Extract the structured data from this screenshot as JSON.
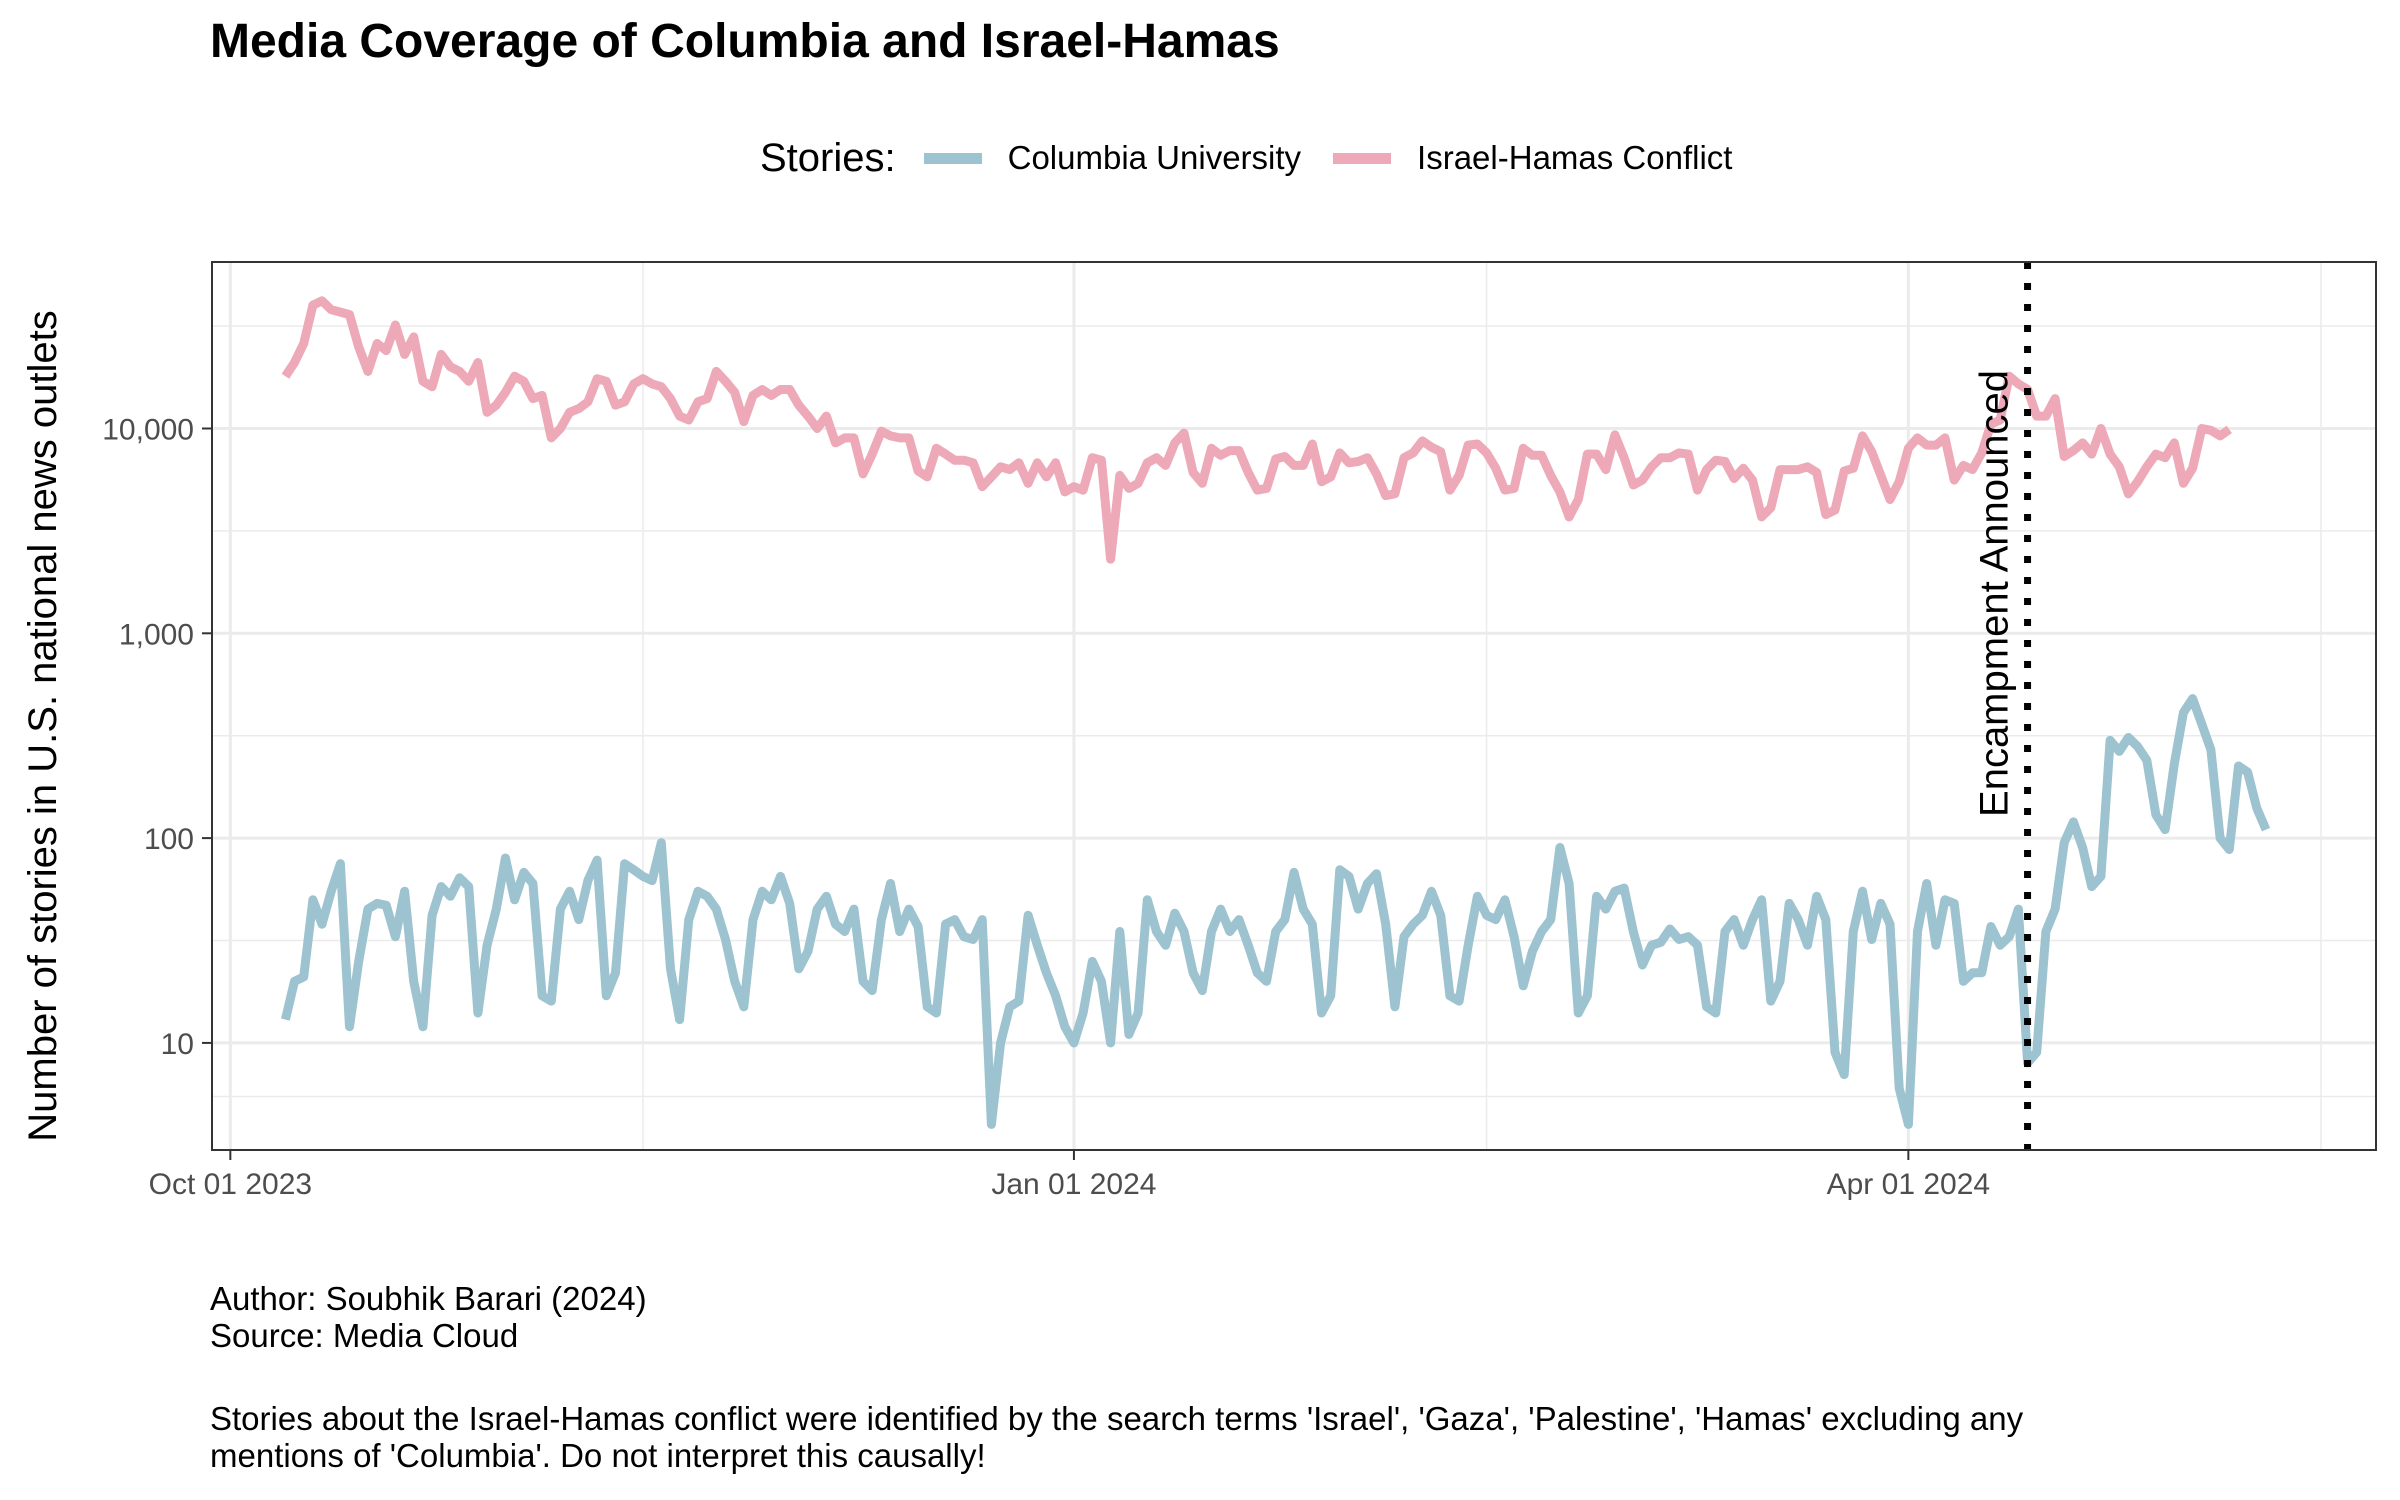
{
  "chart_data": {
    "type": "line",
    "title": "Media Coverage of Columbia and Israel-Hamas",
    "ylabel": "Number of stories in U.S. national news outlets",
    "xlabel": "",
    "x_range": [
      "2023-09-29",
      "2024-05-22"
    ],
    "y_scale": "log10",
    "ylim": [
      3,
      65000
    ],
    "x_ticks": [
      {
        "date": "2023-10-01",
        "label": "Oct 01 2023"
      },
      {
        "date": "2024-01-01",
        "label": "Jan 01 2024"
      },
      {
        "date": "2024-04-01",
        "label": "Apr 01 2024"
      }
    ],
    "y_ticks": [
      {
        "value": 10,
        "label": "10"
      },
      {
        "value": 100,
        "label": "100"
      },
      {
        "value": 1000,
        "label": "1,000"
      },
      {
        "value": 10000,
        "label": "10,000"
      }
    ],
    "legend": {
      "title": "Stories:",
      "position": "top"
    },
    "grid": true,
    "start_date": "2023-10-07",
    "series": [
      {
        "name": "Columbia University",
        "color": "#9CC3CF",
        "values": [
          13,
          20,
          21,
          50,
          38,
          55,
          75,
          12,
          25,
          45,
          48,
          47,
          33,
          55,
          20,
          12,
          42,
          58,
          52,
          64,
          58,
          14,
          30,
          45,
          80,
          50,
          68,
          60,
          17,
          16,
          45,
          55,
          40,
          62,
          78,
          17,
          22,
          75,
          70,
          65,
          62,
          95,
          23,
          13,
          40,
          55,
          52,
          45,
          32,
          20,
          15,
          40,
          55,
          50,
          65,
          48,
          23,
          28,
          45,
          52,
          38,
          35,
          45,
          20,
          18,
          40,
          60,
          35,
          45,
          37,
          15,
          14,
          38,
          40,
          33,
          32,
          40,
          4,
          10,
          15,
          16,
          42,
          30,
          22,
          17,
          12,
          10,
          14,
          25,
          20,
          10,
          35,
          11,
          14,
          50,
          35,
          30,
          43,
          35,
          22,
          18,
          35,
          45,
          35,
          40,
          30,
          22,
          20,
          35,
          40,
          68,
          45,
          38,
          14,
          17,
          70,
          65,
          45,
          60,
          67,
          38,
          15,
          33,
          38,
          42,
          55,
          42,
          17,
          16,
          30,
          52,
          42,
          40,
          50,
          33,
          19,
          28,
          35,
          40,
          90,
          60,
          14,
          17,
          52,
          45,
          55,
          57,
          35,
          24,
          30,
          31,
          36,
          32,
          33,
          30,
          15,
          14,
          35,
          40,
          30,
          40,
          50,
          16,
          20,
          48,
          40,
          30,
          52,
          40,
          9,
          7,
          35,
          55,
          32,
          48,
          38,
          6,
          4,
          35,
          60,
          30,
          50,
          48,
          20,
          22,
          22,
          37,
          30,
          33,
          45,
          8,
          9,
          35,
          45,
          95,
          120,
          90,
          58,
          65,
          300,
          265,
          310,
          280,
          240,
          130,
          110,
          230,
          410,
          480,
          360,
          270,
          100,
          88,
          225,
          210,
          140,
          110
        ]
      },
      {
        "name": "Israel-Hamas Conflict",
        "color": "#EEA9B8",
        "values": [
          18000,
          21000,
          26000,
          40000,
          42000,
          38000,
          37000,
          36000,
          25000,
          19000,
          26000,
          24000,
          32000,
          23000,
          28000,
          17000,
          16000,
          23000,
          20000,
          19000,
          17000,
          21000,
          12000,
          13000,
          15000,
          18000,
          17000,
          14000,
          14500,
          9000,
          10000,
          12000,
          12500,
          13500,
          17500,
          17000,
          13000,
          13500,
          16500,
          17500,
          16500,
          16000,
          14000,
          11500,
          11000,
          13500,
          14000,
          19000,
          17000,
          15000,
          10800,
          14500,
          15500,
          14500,
          15500,
          15500,
          13000,
          11500,
          10000,
          11500,
          8500,
          9000,
          9000,
          6000,
          7500,
          9700,
          9200,
          9000,
          9000,
          6200,
          5800,
          8000,
          7500,
          7000,
          7000,
          6800,
          5200,
          5800,
          6500,
          6300,
          6800,
          5400,
          6800,
          5800,
          6800,
          4900,
          5200,
          5000,
          7200,
          7000,
          2300,
          5900,
          5100,
          5400,
          6800,
          7200,
          6600,
          8500,
          9500,
          6100,
          5400,
          8000,
          7400,
          7800,
          7800,
          6100,
          5000,
          5100,
          7100,
          7300,
          6600,
          6600,
          8400,
          5500,
          5800,
          7600,
          6800,
          6900,
          7200,
          6000,
          4700,
          4800,
          7200,
          7600,
          8700,
          8100,
          7700,
          5000,
          5900,
          8300,
          8400,
          7600,
          6400,
          5000,
          5100,
          8000,
          7400,
          7400,
          5900,
          4900,
          3700,
          4500,
          7500,
          7500,
          6300,
          9300,
          7200,
          5300,
          5600,
          6500,
          7200,
          7200,
          7600,
          7500,
          5000,
          6300,
          7000,
          6900,
          5700,
          6400,
          5600,
          3700,
          4100,
          6300,
          6300,
          6300,
          6500,
          6100,
          3800,
          4000,
          6200,
          6400,
          9200,
          7700,
          5900,
          4500,
          5500,
          8000,
          9000,
          8300,
          8300,
          9000,
          5600,
          6600,
          6300,
          7600,
          10500,
          11000,
          18000,
          16500,
          15500,
          11500,
          11500,
          14000,
          7300,
          7800,
          8500,
          7500,
          10000,
          7500,
          6500,
          4800,
          5500,
          6500,
          7500,
          7200,
          8500,
          5400,
          6400,
          10000,
          9800,
          9200,
          9900
        ]
      }
    ],
    "annotation": {
      "label": "Encampment Announced",
      "date": "2024-04-14",
      "line_style": "dotted"
    }
  },
  "caption": {
    "author": "Author: Soubhik Barari (2024)",
    "source": "Source: Media Cloud",
    "note_line1": "Stories about the Israel-Hamas conflict were identified by the search terms 'Israel', 'Gaza', 'Palestine', 'Hamas' excluding any",
    "note_line2": "mentions of 'Columbia'. Do not interpret this causally!"
  }
}
